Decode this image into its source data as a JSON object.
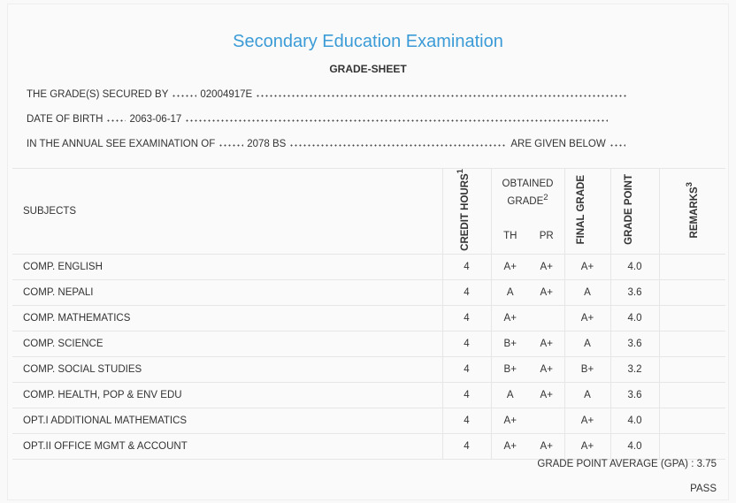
{
  "header": {
    "title": "Secondary Education Examination",
    "subtitle": "GRADE-SHEET"
  },
  "info": {
    "secured_by": {
      "label": "THE GRADE(S) SECURED BY",
      "value": "02004917E"
    },
    "dob": {
      "label": "DATE OF BIRTH",
      "value": "2063-06-17"
    },
    "exam": {
      "label": "IN THE ANNUAL SEE EXAMINATION OF",
      "value": "2078 BS",
      "suffix": "ARE GIVEN BELOW"
    }
  },
  "table": {
    "headers": {
      "subjects": "SUBJECTS",
      "credit_hours": "CREDIT HOURS",
      "credit_note": "1",
      "obtained_grade": "OBTAINED GRADE",
      "obtained_note": "2",
      "th": "TH",
      "pr": "PR",
      "final_grade": "FINAL GRADE",
      "grade_point": "GRADE POINT",
      "remarks": "REMARKS",
      "remarks_note": "3"
    },
    "rows": [
      [
        "COMP. ENGLISH",
        "4",
        "A+",
        "A+",
        "A+",
        "4.0"
      ],
      [
        "COMP. NEPALI",
        "4",
        "A",
        "A+",
        "A",
        "3.6"
      ],
      [
        "COMP. MATHEMATICS",
        "4",
        "A+",
        null,
        "A+",
        "4.0"
      ],
      [
        "COMP. SCIENCE",
        "4",
        "B+",
        "A+",
        "A",
        "3.6"
      ],
      [
        "COMP. SOCIAL STUDIES",
        "4",
        "B+",
        "A+",
        "B+",
        "3.2"
      ],
      [
        "COMP. HEALTH, POP & ENV EDU",
        "4",
        "A",
        "A+",
        "A",
        "3.6"
      ],
      [
        "OPT.I ADDITIONAL MATHEMATICS",
        "4",
        "A+",
        null,
        "A+",
        "4.0"
      ],
      [
        "OPT.II OFFICE MGMT & ACCOUNT",
        "4",
        "A+",
        "A+",
        "A+",
        "4.0"
      ]
    ]
  },
  "footer": {
    "gpa_label": "GRADE POINT AVERAGE (GPA) :",
    "gpa": "3.75",
    "result": "PASS"
  }
}
